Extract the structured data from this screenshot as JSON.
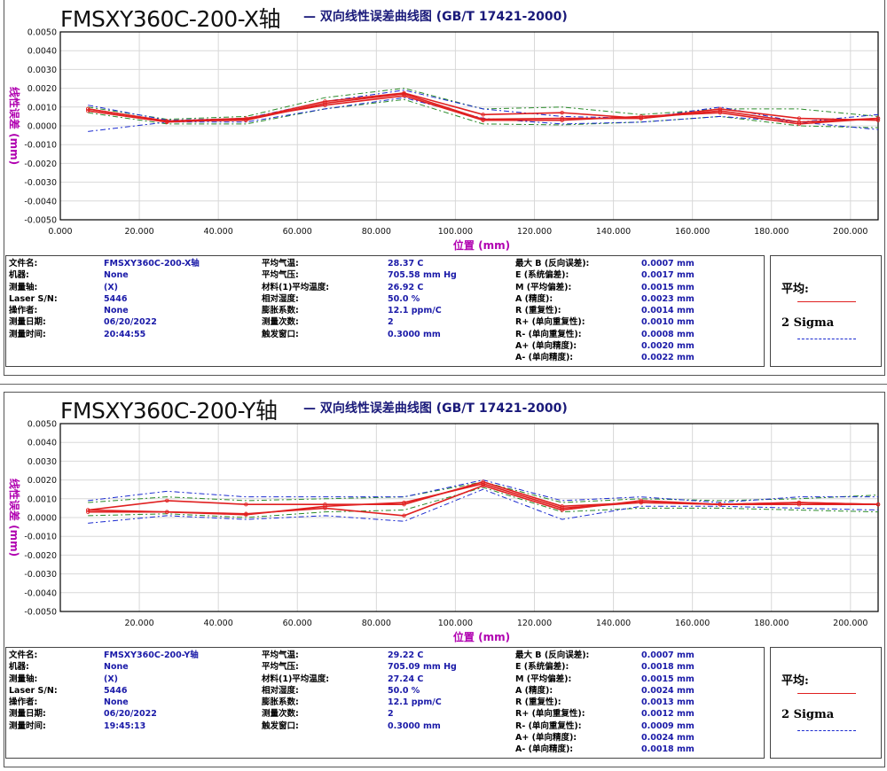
{
  "colors": {
    "mean": "#e02020",
    "sigma_green": "#2a8a2a",
    "sigma_blue": "#1a2ad0",
    "grid": "#d8d8d8",
    "axis_label": "#b000b0",
    "value": "#1a1aa8"
  },
  "panels": [
    {
      "title": "FMSXY360C-200-X轴",
      "subtitle": "— 双向线性误差曲线图  (GB/T 17421-2000)",
      "info": {
        "col1_labels": [
          "文件名:",
          "机器:",
          "测量轴:",
          "Laser S/N:",
          "操作者:",
          "测量日期:",
          "测量时间:"
        ],
        "col1_values": [
          "FMSXY360C-200-X轴",
          "None",
          "(X)",
          "5446",
          "None",
          "06/20/2022",
          "20:44:55"
        ],
        "col2_labels": [
          "平均气温:",
          "平均气压:",
          "材料(1)平均温度:",
          "相对湿度:",
          "膨胀系数:",
          "测量次数:",
          "触发窗口:"
        ],
        "col2_values": [
          "28.37 C",
          "705.58 mm Hg",
          "26.92 C",
          "50.0 %",
          "12.1 ppm/C",
          "2",
          "0.3000 mm"
        ],
        "col3_labels": [
          "最大 B (反向误差):",
          "E (系统偏差):",
          "M (平均偏差):",
          "A (精度):",
          "R (重复性):",
          "R+ (单向重复性):",
          "R- (单向重复性):",
          "A+ (单向精度):",
          "A- (单向精度):"
        ],
        "col3_values": [
          "0.0007 mm",
          "0.0017 mm",
          "0.0015 mm",
          "0.0023 mm",
          "0.0014 mm",
          "0.0010 mm",
          "0.0008 mm",
          "0.0020 mm",
          "0.0022 mm"
        ]
      },
      "legend": {
        "mean_label": "平均:",
        "sigma_label": "2 Sigma"
      }
    },
    {
      "title": "FMSXY360C-200-Y轴",
      "subtitle": "— 双向线性误差曲线图  (GB/T 17421-2000)",
      "info": {
        "col1_labels": [
          "文件名:",
          "机器:",
          "测量轴:",
          "Laser S/N:",
          "操作者:",
          "测量日期:",
          "测量时间:"
        ],
        "col1_values": [
          "FMSXY360C-200-Y轴",
          "None",
          "(X)",
          "5446",
          "None",
          "06/20/2022",
          "19:45:13"
        ],
        "col2_labels": [
          "平均气温:",
          "平均气压:",
          "材料(1)平均温度:",
          "相对湿度:",
          "膨胀系数:",
          "测量次数:",
          "触发窗口:"
        ],
        "col2_values": [
          "29.22 C",
          "705.09 mm Hg",
          "27.24 C",
          "50.0 %",
          "12.1 ppm/C",
          "2",
          "0.3000 mm"
        ],
        "col3_labels": [
          "最大 B (反向误差):",
          "E (系统偏差):",
          "M (平均偏差):",
          "A (精度):",
          "R (重复性):",
          "R+ (单向重复性):",
          "R- (单向重复性):",
          "A+ (单向精度):",
          "A- (单向精度):"
        ],
        "col3_values": [
          "0.0007 mm",
          "0.0018 mm",
          "0.0015 mm",
          "0.0024 mm",
          "0.0013 mm",
          "0.0012 mm",
          "0.0009 mm",
          "0.0024 mm",
          "0.0018 mm"
        ]
      },
      "legend": {
        "mean_label": "平均:",
        "sigma_label": "2 Sigma"
      }
    }
  ],
  "chart_data": [
    {
      "type": "line",
      "xlabel": "位置 (mm)",
      "ylabel": "线性误差 (mm)",
      "xlim": [
        0,
        207
      ],
      "ylim": [
        -0.005,
        0.005
      ],
      "x_ticks": [
        "0.000",
        "20.000",
        "40.000",
        "60.000",
        "80.000",
        "100.000",
        "120.000",
        "140.000",
        "160.000",
        "180.000",
        "200.000"
      ],
      "y_ticks": [
        "0.0050",
        "0.0040",
        "0.0030",
        "0.0020",
        "0.0010",
        "0.0000",
        "-0.0010",
        "-0.0020",
        "-0.0030",
        "-0.0040",
        "-0.0050"
      ],
      "grid": true,
      "x": [
        7,
        27,
        47,
        67,
        87,
        107,
        127,
        147,
        167,
        187,
        207
      ],
      "series": [
        {
          "name": "平均:",
          "style": "mean",
          "values": [
            0.0009,
            0.00025,
            0.0003,
            0.0012,
            0.0017,
            0.00035,
            0.0004,
            0.0004,
            0.0008,
            0.0002,
            0.0004
          ]
        },
        {
          "style": "mean",
          "values": [
            0.0008,
            0.0002,
            0.00035,
            0.0013,
            0.00175,
            0.0006,
            0.0007,
            0.0004,
            0.0009,
            0.0004,
            0.0003
          ]
        },
        {
          "style": "mean",
          "values": [
            0.0009,
            0.00025,
            0.0004,
            0.0011,
            0.0016,
            0.0003,
            0.0003,
            0.0005,
            0.0007,
            0.0001,
            0.0004
          ]
        },
        {
          "name": "2 Sigma",
          "style": "sigma_blue",
          "values": [
            -0.0003,
            0.0002,
            0.0002,
            0.0009,
            0.0015,
            0.0004,
            0.0001,
            0.0002,
            0.0005,
            0.0002,
            -0.0002
          ]
        },
        {
          "style": "sigma_blue",
          "values": [
            0.0011,
            0.0003,
            0.0004,
            0.0013,
            0.0019,
            0.0009,
            0.0005,
            0.0004,
            0.001,
            0.0002,
            0.0006
          ]
        },
        {
          "style": "sigma_green",
          "values": [
            0.001,
            0.00035,
            0.0005,
            0.0015,
            0.002,
            0.0009,
            0.001,
            0.0006,
            0.0009,
            0.0009,
            0.0005
          ]
        },
        {
          "style": "sigma_green",
          "values": [
            0.0007,
            0.0001,
            0.0001,
            0.0009,
            0.0014,
            0.0001,
            5e-05,
            0.0002,
            0.0005,
            0.0,
            -0.0001
          ]
        }
      ]
    },
    {
      "type": "line",
      "xlabel": "位置 (mm)",
      "ylabel": "线性误差 (mm)",
      "xlim": [
        0,
        207
      ],
      "ylim": [
        -0.005,
        0.005
      ],
      "x_ticks": [
        "20.000",
        "40.000",
        "60.000",
        "80.000",
        "100.000",
        "120.000",
        "140.000",
        "160.000",
        "180.000",
        "200.000"
      ],
      "y_ticks": [
        "0.0050",
        "0.0040",
        "0.0030",
        "0.0020",
        "0.0010",
        "0.0000",
        "-0.0010",
        "-0.0020",
        "-0.0030",
        "-0.0040",
        "-0.0050"
      ],
      "grid": true,
      "x": [
        7,
        27,
        47,
        67,
        87,
        107,
        127,
        147,
        167,
        187,
        207
      ],
      "series": [
        {
          "name": "平均:",
          "style": "mean",
          "values": [
            0.0004,
            0.0003,
            0.00015,
            0.0006,
            0.0008,
            0.0018,
            0.0005,
            0.0008,
            0.0007,
            0.0008,
            0.0007
          ]
        },
        {
          "style": "mean",
          "values": [
            0.0004,
            0.0009,
            0.0007,
            0.0007,
            0.0007,
            0.0019,
            0.0006,
            0.0008,
            0.0007,
            0.0007,
            0.0007
          ]
        },
        {
          "style": "mean",
          "values": [
            0.0003,
            0.0003,
            0.0002,
            0.0005,
            0.0001,
            0.0017,
            0.0004,
            0.0009,
            0.0007,
            0.0008,
            0.0007
          ]
        },
        {
          "name": "2 Sigma",
          "style": "sigma_blue",
          "values": [
            -0.0003,
            0.0001,
            -0.0001,
            0.0001,
            -0.0002,
            0.0015,
            -0.0001,
            0.0006,
            0.0006,
            0.0005,
            0.0004
          ]
        },
        {
          "style": "sigma_blue",
          "values": [
            0.0009,
            0.0014,
            0.0011,
            0.0011,
            0.0011,
            0.002,
            0.0009,
            0.0011,
            0.0008,
            0.0011,
            0.0011
          ]
        },
        {
          "style": "sigma_green",
          "values": [
            0.0008,
            0.0011,
            0.0009,
            0.001,
            0.0011,
            0.0019,
            0.0008,
            0.001,
            0.0009,
            0.001,
            0.0012
          ]
        },
        {
          "style": "sigma_green",
          "values": [
            0.0001,
            0.0002,
            0.0,
            0.0003,
            0.0004,
            0.0016,
            0.0003,
            0.0005,
            0.0005,
            0.0004,
            0.0003
          ]
        }
      ]
    }
  ]
}
